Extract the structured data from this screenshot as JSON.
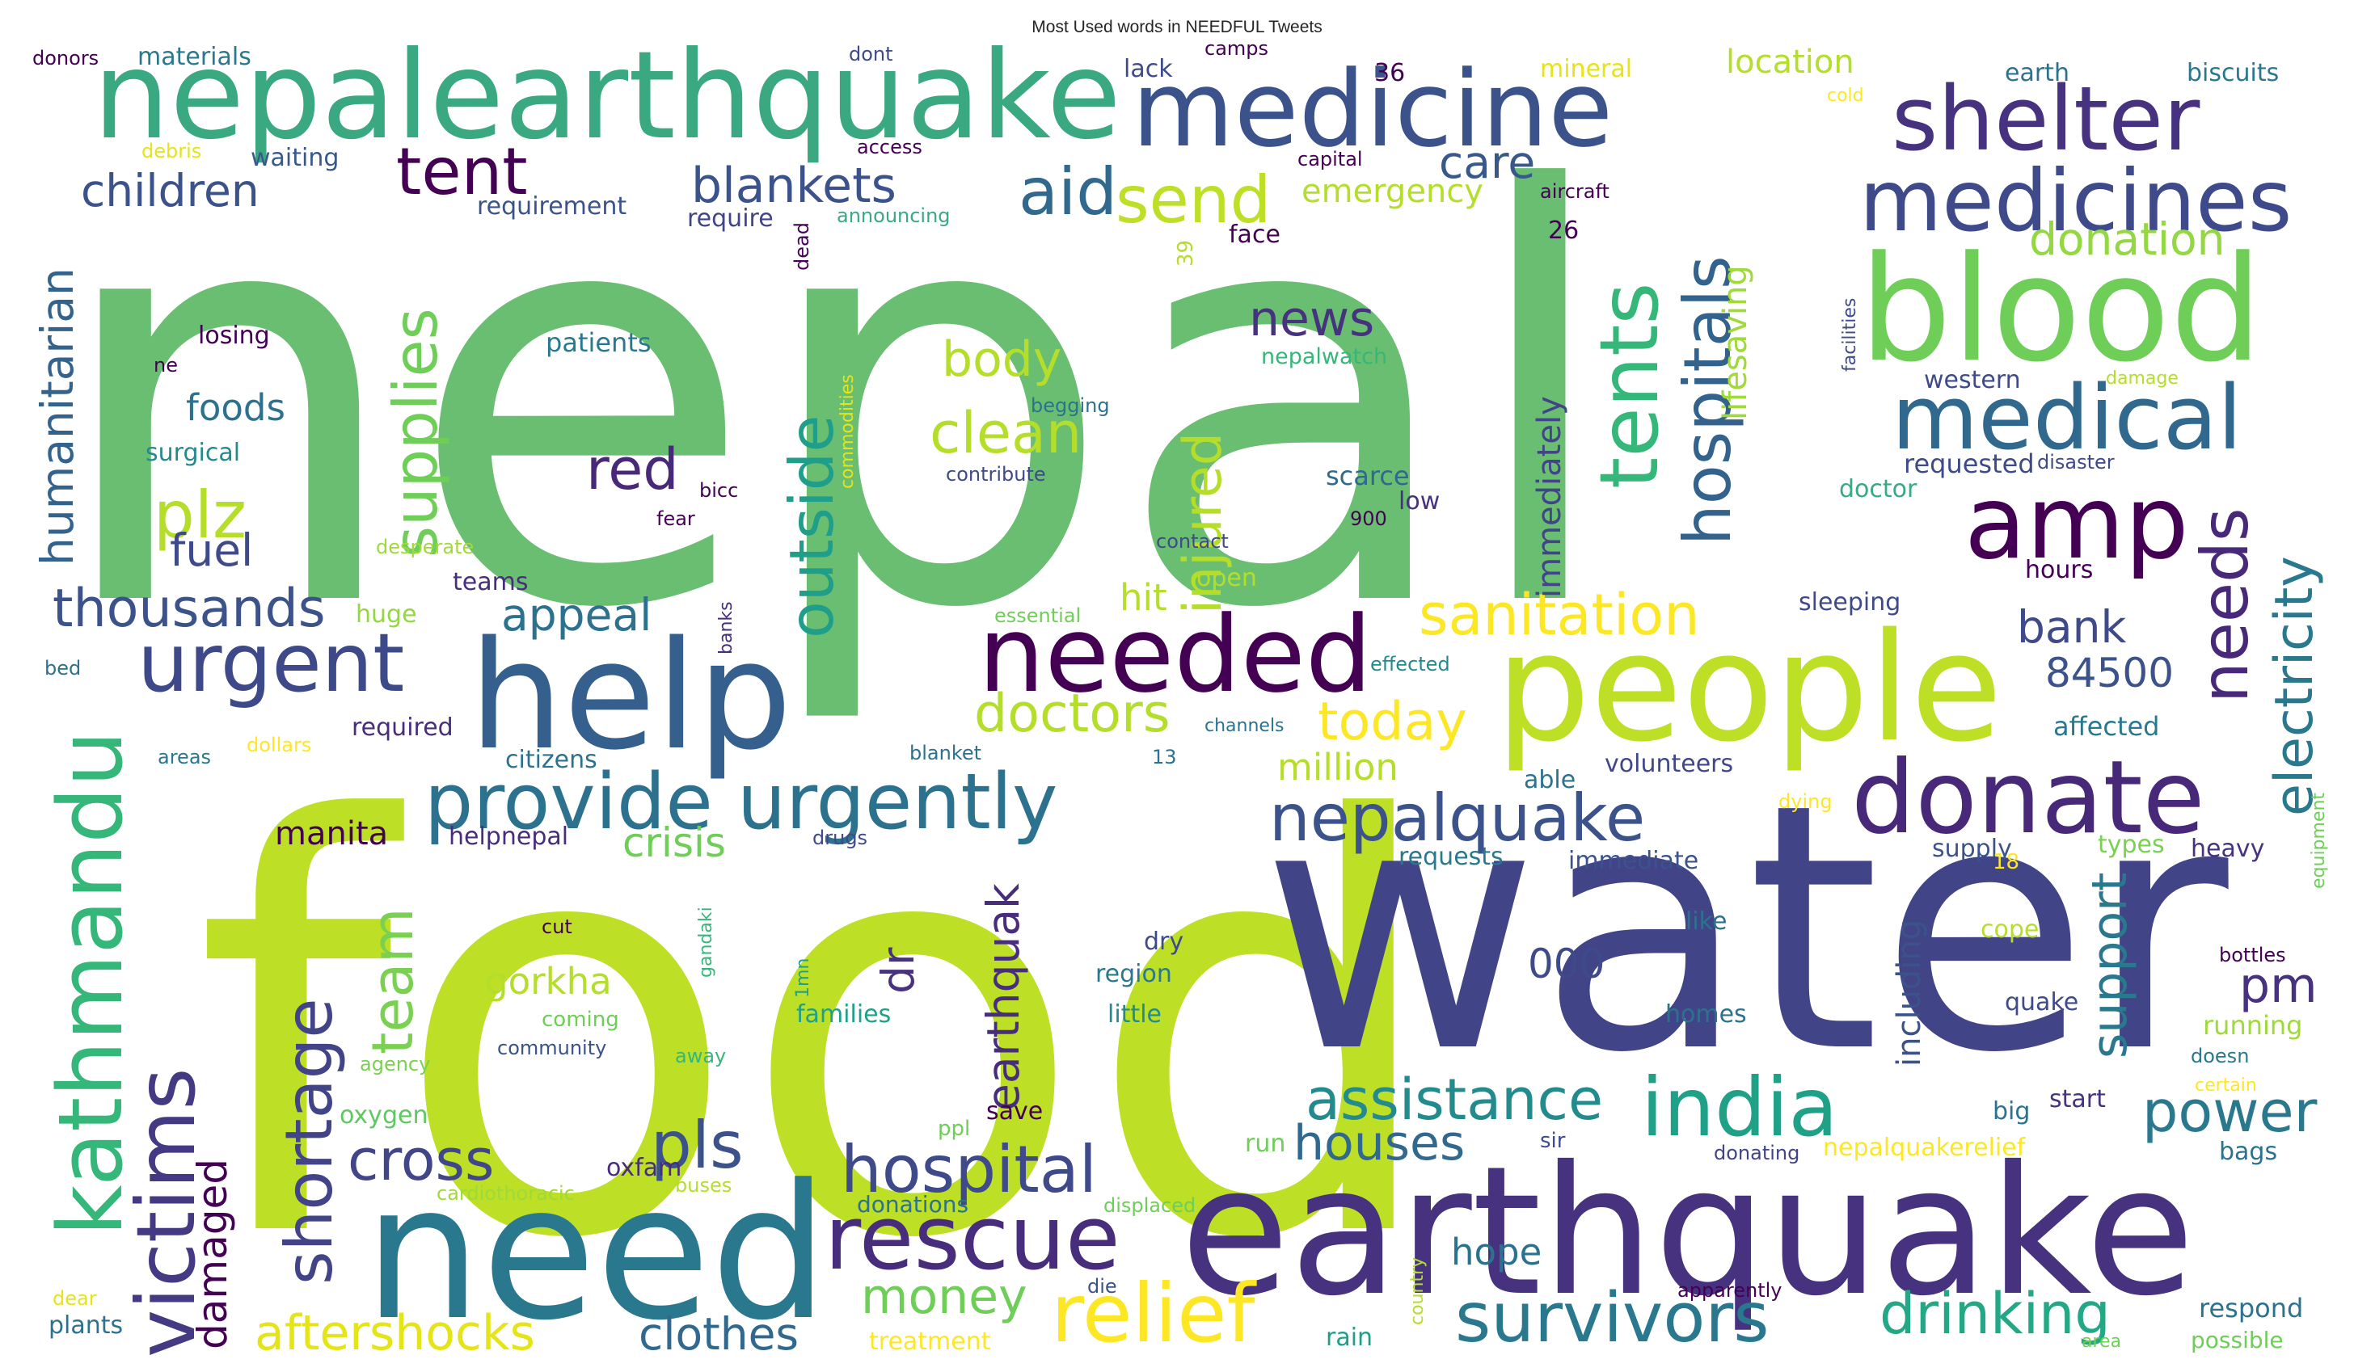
{
  "chart_data": {
    "type": "wordcloud",
    "title": "Most Used words in NEEDFUL Tweets",
    "colormap": "viridis",
    "background": "#ffffff",
    "words": [
      {
        "text": "nepal",
        "weight": 100,
        "color": "#6abe71"
      },
      {
        "text": "food",
        "weight": 95,
        "color": "#bddf26"
      },
      {
        "text": "water",
        "weight": 90,
        "color": "#414487"
      },
      {
        "text": "earthquake",
        "weight": 60,
        "color": "#46327e"
      },
      {
        "text": "need",
        "weight": 58,
        "color": "#2a788e"
      },
      {
        "text": "nepalearthquake",
        "weight": 52,
        "color": "#3aa981"
      },
      {
        "text": "people",
        "weight": 50,
        "color": "#bddf26"
      },
      {
        "text": "help",
        "weight": 50,
        "color": "#355f8d"
      },
      {
        "text": "blood",
        "weight": 47,
        "color": "#6ece58"
      },
      {
        "text": "medicine",
        "weight": 40,
        "color": "#3b528b"
      },
      {
        "text": "needed",
        "weight": 40,
        "color": "#440154"
      },
      {
        "text": "donate",
        "weight": 38,
        "color": "#482878"
      },
      {
        "text": "shelter",
        "weight": 36,
        "color": "#46327e"
      },
      {
        "text": "amp",
        "weight": 36,
        "color": "#440154"
      },
      {
        "text": "medicines",
        "weight": 34,
        "color": "#3e4a89"
      },
      {
        "text": "kathmandu",
        "weight": 34,
        "color": "#35b779"
      },
      {
        "text": "medical",
        "weight": 34,
        "color": "#31688e"
      },
      {
        "text": "provide urgently",
        "weight": 32,
        "color": "#2c728e"
      },
      {
        "text": "rescue",
        "weight": 32,
        "color": "#472d7b"
      },
      {
        "text": "relief",
        "weight": 32,
        "color": "#fde725"
      },
      {
        "text": "india",
        "weight": 32,
        "color": "#1fa187"
      },
      {
        "text": "victims",
        "weight": 30,
        "color": "#443983"
      },
      {
        "text": "urgent",
        "weight": 30,
        "color": "#3e4989"
      },
      {
        "text": "tents",
        "weight": 30,
        "color": "#35b779"
      },
      {
        "text": "survivors",
        "weight": 28,
        "color": "#2a788e"
      },
      {
        "text": "hospitals",
        "weight": 28,
        "color": "#33638d"
      },
      {
        "text": "needs",
        "weight": 28,
        "color": "#482878"
      },
      {
        "text": "hospital",
        "weight": 28,
        "color": "#3e4a89"
      },
      {
        "text": "shortage",
        "weight": 26,
        "color": "#414487"
      },
      {
        "text": "nepalquake",
        "weight": 26,
        "color": "#3b528b"
      },
      {
        "text": "aid",
        "weight": 26,
        "color": "#31688e"
      },
      {
        "text": "send",
        "weight": 26,
        "color": "#bddf26"
      },
      {
        "text": "outside",
        "weight": 26,
        "color": "#1f9e89"
      },
      {
        "text": "supplies",
        "weight": 26,
        "color": "#6ece58"
      },
      {
        "text": "electricity",
        "weight": 24,
        "color": "#2a788e"
      },
      {
        "text": "tent",
        "weight": 24,
        "color": "#440154"
      },
      {
        "text": "plz",
        "weight": 24,
        "color": "#b5de2b"
      },
      {
        "text": "assistance",
        "weight": 24,
        "color": "#238a8d"
      },
      {
        "text": "drinking",
        "weight": 24,
        "color": "#22a884"
      },
      {
        "text": "pls",
        "weight": 24,
        "color": "#3b528b"
      },
      {
        "text": "cross",
        "weight": 22,
        "color": "#404688"
      },
      {
        "text": "sanitation",
        "weight": 22,
        "color": "#fde725"
      },
      {
        "text": "power",
        "weight": 22,
        "color": "#2a788e"
      },
      {
        "text": "injured",
        "weight": 22,
        "color": "#b5de2b"
      },
      {
        "text": "clean",
        "weight": 22,
        "color": "#b5de2b"
      },
      {
        "text": "houses",
        "weight": 22,
        "color": "#31688e"
      },
      {
        "text": "support",
        "weight": 22,
        "color": "#2a788e"
      },
      {
        "text": "team",
        "weight": 22,
        "color": "#7ad151"
      },
      {
        "text": "earthquak",
        "weight": 20,
        "color": "#472d7b"
      },
      {
        "text": "thousands",
        "weight": 20,
        "color": "#3b528b"
      },
      {
        "text": "doctors",
        "weight": 20,
        "color": "#b5de2b"
      },
      {
        "text": "today",
        "weight": 20,
        "color": "#fde725"
      },
      {
        "text": "red",
        "weight": 20,
        "color": "#482878"
      },
      {
        "text": "aftershocks",
        "weight": 20,
        "color": "#e5e419"
      },
      {
        "text": "money",
        "weight": 20,
        "color": "#6ece58"
      },
      {
        "text": "body",
        "weight": 20,
        "color": "#b5de2b"
      },
      {
        "text": "clothes",
        "weight": 20,
        "color": "#31688e"
      },
      {
        "text": "news",
        "weight": 20,
        "color": "#46327e"
      },
      {
        "text": "humanitarian",
        "weight": 20,
        "color": "#33638d"
      },
      {
        "text": "bank",
        "weight": 18,
        "color": "#3e4a89"
      },
      {
        "text": "84500",
        "weight": 18,
        "color": "#3b528b"
      },
      {
        "text": "blankets",
        "weight": 18,
        "color": "#3b528b"
      },
      {
        "text": "fuel",
        "weight": 18,
        "color": "#3e4a89"
      },
      {
        "text": "appeal",
        "weight": 18,
        "color": "#2c728e"
      },
      {
        "text": "children",
        "weight": 18,
        "color": "#3b528b"
      },
      {
        "text": "care",
        "weight": 18,
        "color": "#38588c"
      },
      {
        "text": "donation",
        "weight": 18,
        "color": "#93d741"
      },
      {
        "text": "crisis",
        "weight": 18,
        "color": "#6ece58"
      },
      {
        "text": "pm",
        "weight": 18,
        "color": "#46327e"
      },
      {
        "text": "dr",
        "weight": 18,
        "color": "#46327e"
      },
      {
        "text": "damaged",
        "weight": 16,
        "color": "#440154"
      },
      {
        "text": "hope",
        "weight": 16,
        "color": "#2c728e"
      },
      {
        "text": "000",
        "weight": 16,
        "color": "#3e4a89"
      },
      {
        "text": "gorkha",
        "weight": 16,
        "color": "#b5de2b"
      },
      {
        "text": "million",
        "weight": 16,
        "color": "#b5de2b"
      },
      {
        "text": "hit",
        "weight": 16,
        "color": "#b5de2b"
      },
      {
        "text": "foods",
        "weight": 16,
        "color": "#2c728e"
      },
      {
        "text": "manita",
        "weight": 15,
        "color": "#440154"
      },
      {
        "text": "emergency",
        "weight": 15,
        "color": "#b5de2b"
      },
      {
        "text": "location",
        "weight": 15,
        "color": "#b5de2b"
      },
      {
        "text": "immediately",
        "weight": 15,
        "color": "#414487"
      },
      {
        "text": "including",
        "weight": 15,
        "color": "#3b528b"
      },
      {
        "text": "lifesaving",
        "weight": 14,
        "color": "#a0da39"
      },
      {
        "text": "helpnepal",
        "weight": 12,
        "color": "#472d7b"
      },
      {
        "text": "respond",
        "weight": 12,
        "color": "#2c728e"
      },
      {
        "text": "patients",
        "weight": 12,
        "color": "#2a788e"
      },
      {
        "text": "affected",
        "weight": 12,
        "color": "#2a788e"
      },
      {
        "text": "requested",
        "weight": 12,
        "color": "#3e4a89"
      },
      {
        "text": "running",
        "weight": 12,
        "color": "#a0da39"
      },
      {
        "text": "quake",
        "weight": 11,
        "color": "#3e4a89"
      },
      {
        "text": "volunteers",
        "weight": 11,
        "color": "#404688"
      },
      {
        "text": "requests",
        "weight": 11,
        "color": "#2a788e"
      },
      {
        "text": "immediate",
        "weight": 11,
        "color": "#3b528b"
      },
      {
        "text": "supply",
        "weight": 11,
        "color": "#3b528b"
      },
      {
        "text": "bags",
        "weight": 11,
        "color": "#2c728e"
      },
      {
        "text": "heavy",
        "weight": 11,
        "color": "#46327e"
      },
      {
        "text": "types",
        "weight": 11,
        "color": "#7ad151"
      },
      {
        "text": "doctor",
        "weight": 11,
        "color": "#3aa981"
      },
      {
        "text": "hours",
        "weight": 11,
        "color": "#440154"
      },
      {
        "text": "sleeping",
        "weight": 11,
        "color": "#3e4a89"
      },
      {
        "text": "open",
        "weight": 11,
        "color": "#b5de2b"
      },
      {
        "text": "cope",
        "weight": 11,
        "color": "#b5de2b"
      },
      {
        "text": "like",
        "weight": 11,
        "color": "#2c728e"
      },
      {
        "text": "homes",
        "weight": 11,
        "color": "#2c728e"
      },
      {
        "text": "start",
        "weight": 11,
        "color": "#46327e"
      },
      {
        "text": "big",
        "weight": 11,
        "color": "#2c728e"
      },
      {
        "text": "families",
        "weight": 11,
        "color": "#1fa187"
      },
      {
        "text": "region",
        "weight": 11,
        "color": "#2a788e"
      },
      {
        "text": "little",
        "weight": 11,
        "color": "#238a8d"
      },
      {
        "text": "dry",
        "weight": 11,
        "color": "#3e4a89"
      },
      {
        "text": "citizens",
        "weight": 11,
        "color": "#2c728e"
      },
      {
        "text": "required",
        "weight": 11,
        "color": "#472d7b"
      },
      {
        "text": "surgical",
        "weight": 11,
        "color": "#238a8d"
      },
      {
        "text": "teams",
        "weight": 11,
        "color": "#472d7b"
      },
      {
        "text": "oxygen",
        "weight": 11,
        "color": "#5ec962"
      },
      {
        "text": "huge",
        "weight": 11,
        "color": "#93d741"
      },
      {
        "text": "treatment",
        "weight": 11,
        "color": "#fde725"
      },
      {
        "text": "plants",
        "weight": 11,
        "color": "#2c728e"
      },
      {
        "text": "waiting",
        "weight": 11,
        "color": "#38588c"
      },
      {
        "text": "materials",
        "weight": 11,
        "color": "#2a788e"
      },
      {
        "text": "donors",
        "weight": 10,
        "color": "#440154"
      },
      {
        "text": "requirement",
        "weight": 11,
        "color": "#3b528b"
      },
      {
        "text": "require",
        "weight": 11,
        "color": "#414487"
      },
      {
        "text": "losing",
        "weight": 11,
        "color": "#440154"
      },
      {
        "text": "lack",
        "weight": 11,
        "color": "#3e4a89"
      },
      {
        "text": "mineral",
        "weight": 11,
        "color": "#e5e419"
      },
      {
        "text": "earth",
        "weight": 11,
        "color": "#2c728e"
      },
      {
        "text": "biscuits",
        "weight": 11,
        "color": "#2a788e"
      },
      {
        "text": "face",
        "weight": 11,
        "color": "#440154"
      },
      {
        "text": "scarce",
        "weight": 11,
        "color": "#31688e"
      },
      {
        "text": "low",
        "weight": 11,
        "color": "#46327e"
      },
      {
        "text": "western",
        "weight": 11,
        "color": "#3e4a89"
      },
      {
        "text": "nepalwatch",
        "weight": 10,
        "color": "#35b779"
      },
      {
        "text": "donations",
        "weight": 10,
        "color": "#2c728e"
      },
      {
        "text": "nepalquakerelief",
        "weight": 11,
        "color": "#fde725"
      },
      {
        "text": "run",
        "weight": 11,
        "color": "#6ece58"
      },
      {
        "text": "save",
        "weight": 11,
        "color": "#440154"
      },
      {
        "text": "oxfam",
        "weight": 11,
        "color": "#472d7b"
      },
      {
        "text": "able",
        "weight": 11,
        "color": "#2c728e"
      },
      {
        "text": "rain",
        "weight": 11,
        "color": "#1f9e89"
      },
      {
        "text": "36",
        "weight": 11,
        "color": "#440154"
      },
      {
        "text": "26",
        "weight": 11,
        "color": "#440154"
      },
      {
        "text": "39",
        "weight": 10,
        "color": "#b5de2b"
      },
      {
        "text": "900",
        "weight": 9,
        "color": "#440154"
      },
      {
        "text": "13",
        "weight": 9,
        "color": "#2c728e"
      },
      {
        "text": "18",
        "weight": 9,
        "color": "#fde725"
      },
      {
        "text": "1mn",
        "weight": 8,
        "color": "#1fa187"
      },
      {
        "text": "dont",
        "weight": 9,
        "color": "#3e4a89"
      },
      {
        "text": "camps",
        "weight": 9,
        "color": "#440154"
      },
      {
        "text": "access",
        "weight": 9,
        "color": "#440154"
      },
      {
        "text": "announcing",
        "weight": 9,
        "color": "#3aa981"
      },
      {
        "text": "capital",
        "weight": 9,
        "color": "#440154"
      },
      {
        "text": "aircraft",
        "weight": 9,
        "color": "#440154"
      },
      {
        "text": "cold",
        "weight": 8,
        "color": "#fde725"
      },
      {
        "text": "debris",
        "weight": 9,
        "color": "#e5e419"
      },
      {
        "text": "ne",
        "weight": 9,
        "color": "#440154"
      },
      {
        "text": "dead",
        "weight": 9,
        "color": "#440154"
      },
      {
        "text": "begging",
        "weight": 9,
        "color": "#2c728e"
      },
      {
        "text": "contribute",
        "weight": 9,
        "color": "#3e4a89"
      },
      {
        "text": "commodities",
        "weight": 8,
        "color": "#e5e419"
      },
      {
        "text": "bicc",
        "weight": 9,
        "color": "#440154"
      },
      {
        "text": "fear",
        "weight": 9,
        "color": "#440154"
      },
      {
        "text": "contact",
        "weight": 9,
        "color": "#3e4a89"
      },
      {
        "text": "desperate",
        "weight": 9,
        "color": "#a0da39"
      },
      {
        "text": "essential",
        "weight": 9,
        "color": "#6ece58"
      },
      {
        "text": "effected",
        "weight": 9,
        "color": "#238a8d"
      },
      {
        "text": "banks",
        "weight": 8,
        "color": "#472d7b"
      },
      {
        "text": "bed",
        "weight": 9,
        "color": "#2c728e"
      },
      {
        "text": "areas",
        "weight": 9,
        "color": "#2a788e"
      },
      {
        "text": "dollars",
        "weight": 9,
        "color": "#fde725"
      },
      {
        "text": "blanket",
        "weight": 9,
        "color": "#2c728e"
      },
      {
        "text": "channels",
        "weight": 8,
        "color": "#2c728e"
      },
      {
        "text": "drugs",
        "weight": 9,
        "color": "#3e4a89"
      },
      {
        "text": "gandaki",
        "weight": 8,
        "color": "#35b779"
      },
      {
        "text": "cut",
        "weight": 9,
        "color": "#440154"
      },
      {
        "text": "coming",
        "weight": 9,
        "color": "#6ece58"
      },
      {
        "text": "community",
        "weight": 9,
        "color": "#3b528b"
      },
      {
        "text": "agency",
        "weight": 9,
        "color": "#7ad151"
      },
      {
        "text": "away",
        "weight": 9,
        "color": "#35b779"
      },
      {
        "text": "ppl",
        "weight": 9,
        "color": "#6ece58"
      },
      {
        "text": "buses",
        "weight": 9,
        "color": "#b5de2b"
      },
      {
        "text": "cardiothoracic",
        "weight": 9,
        "color": "#a0da39"
      },
      {
        "text": "displaced",
        "weight": 9,
        "color": "#6ece58"
      },
      {
        "text": "die",
        "weight": 9,
        "color": "#3b528b"
      },
      {
        "text": "dear",
        "weight": 9,
        "color": "#e5e419"
      },
      {
        "text": "country",
        "weight": 8,
        "color": "#b5de2b"
      },
      {
        "text": "sir",
        "weight": 9,
        "color": "#3e4a89"
      },
      {
        "text": "apparently",
        "weight": 9,
        "color": "#440154"
      },
      {
        "text": "donating",
        "weight": 9,
        "color": "#414487"
      },
      {
        "text": "facilities",
        "weight": 8,
        "color": "#3e4a89"
      },
      {
        "text": "damage",
        "weight": 8,
        "color": "#b5de2b"
      },
      {
        "text": "disaster",
        "weight": 8,
        "color": "#3e4a89"
      },
      {
        "text": "dying",
        "weight": 8,
        "color": "#fde725"
      },
      {
        "text": "equipment",
        "weight": 8,
        "color": "#6ece58"
      },
      {
        "text": "bottles",
        "weight": 8,
        "color": "#440154"
      },
      {
        "text": "doesn",
        "weight": 8,
        "color": "#2a788e"
      },
      {
        "text": "certain",
        "weight": 8,
        "color": "#fde725"
      },
      {
        "text": "area",
        "weight": 8,
        "color": "#6ece58"
      },
      {
        "text": "possible",
        "weight": 9,
        "color": "#6ece58"
      }
    ]
  }
}
